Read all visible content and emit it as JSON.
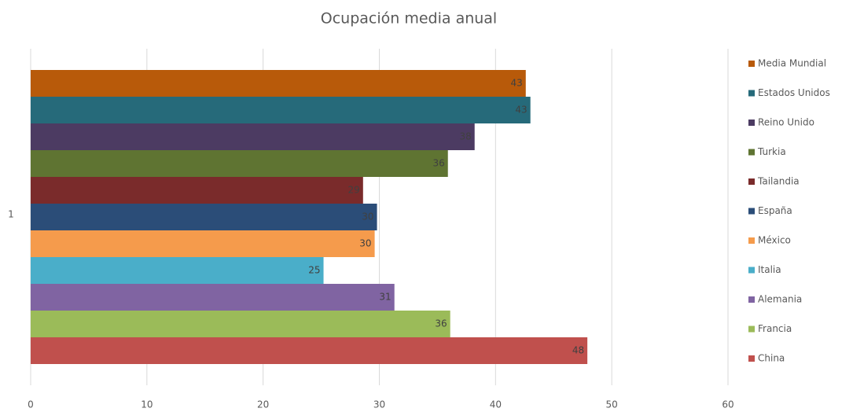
{
  "chart_data": {
    "type": "bar",
    "orientation": "horizontal",
    "title": "Ocupación media anual",
    "categories": [
      "1"
    ],
    "series": [
      {
        "name": "Media Mundial",
        "color": "#b85a0a",
        "values": [
          42.6
        ],
        "value_labels": [
          "43"
        ]
      },
      {
        "name": "Estados Unidos",
        "color": "#266a7a",
        "values": [
          43.0
        ],
        "value_labels": [
          "43"
        ]
      },
      {
        "name": "Reino Unido",
        "color": "#4c3b62",
        "values": [
          38.2
        ],
        "value_labels": [
          "38"
        ]
      },
      {
        "name": "Turkia",
        "color": "#5f7432",
        "values": [
          35.9
        ],
        "value_labels": [
          "36"
        ]
      },
      {
        "name": "Tailandia",
        "color": "#7a2b2b",
        "values": [
          28.6
        ],
        "value_labels": [
          "29"
        ]
      },
      {
        "name": "España",
        "color": "#2b4d78",
        "values": [
          29.8
        ],
        "value_labels": [
          "30"
        ]
      },
      {
        "name": "México",
        "color": "#f59b4c",
        "values": [
          29.6
        ],
        "value_labels": [
          "30"
        ]
      },
      {
        "name": "Italia",
        "color": "#4aaec9",
        "values": [
          25.2
        ],
        "value_labels": [
          "25"
        ]
      },
      {
        "name": "Alemania",
        "color": "#8064a2",
        "values": [
          31.3
        ],
        "value_labels": [
          "31"
        ]
      },
      {
        "name": "Francia",
        "color": "#9bbb59",
        "values": [
          36.1
        ],
        "value_labels": [
          "36"
        ]
      },
      {
        "name": "China",
        "color": "#c0504d",
        "values": [
          47.9
        ],
        "value_labels": [
          "48"
        ]
      }
    ],
    "xlim": [
      0,
      60
    ],
    "xticks": [
      0,
      10,
      20,
      30,
      40,
      50,
      60
    ],
    "grid": true,
    "legend": "right"
  }
}
